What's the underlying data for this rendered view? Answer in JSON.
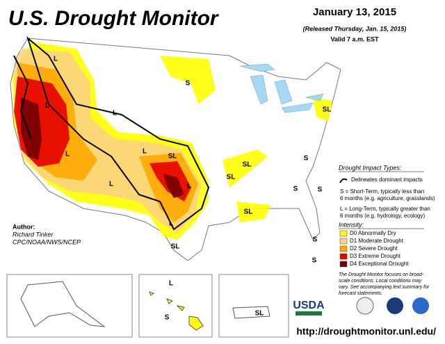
{
  "title": "U.S. Drought Monitor",
  "date": "January 13, 2015",
  "released": "(Released Thursday, Jan. 15, 2015)",
  "valid": "Valid 7 a.m. EST",
  "author": {
    "heading": "Author:",
    "name": "Richard Tinker",
    "org": "CPC/NOAA/NWS/NCEP"
  },
  "impact": {
    "heading": "Drought Impact Types:",
    "line": "Delineates dominant impacts",
    "short": [
      "S = Short-Term, typically less than",
      "6 months (e.g. agriculture, grasslands)"
    ],
    "long": [
      "L = Long-Term, typically greater than",
      "6 months (e.g. hydrology, ecology)"
    ]
  },
  "intensity": {
    "heading": "Intensity:",
    "items": [
      {
        "label": "D0 Abnormally Dry",
        "color": "#ffff00"
      },
      {
        "label": "D1 Moderate Drought",
        "color": "#fcd37f"
      },
      {
        "label": "D2 Severe Drought",
        "color": "#ffaa00"
      },
      {
        "label": "D3 Extreme Drought",
        "color": "#e60000"
      },
      {
        "label": "D4 Exceptional Drought",
        "color": "#730000"
      }
    ]
  },
  "note": [
    "The Drought Monitor focuses on broad-",
    "scale conditions. Local conditions may",
    "vary. See accompanying text summary for",
    "forecast statements."
  ],
  "logo": "USDA",
  "url": "http://droughtmonitor.unl.edu/",
  "map_labels": [
    "L",
    "S",
    "L",
    "L",
    "SL",
    "L",
    "SL",
    "S",
    "L",
    "SL",
    "SL",
    "L",
    "L",
    "S",
    "S",
    "SL",
    "L",
    "S",
    "SL",
    "S",
    "L",
    "S",
    "SL"
  ]
}
